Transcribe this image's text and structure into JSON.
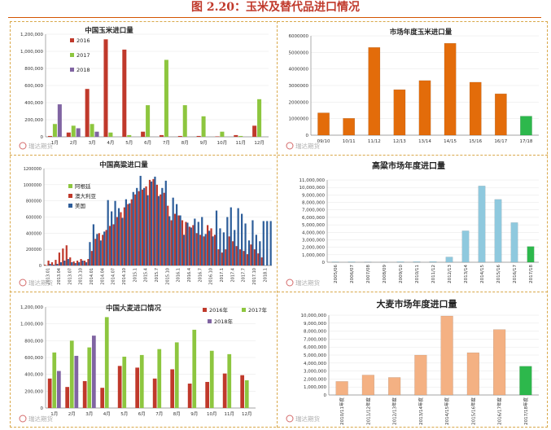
{
  "page": {
    "title": "图 2.20：玉米及替代品进口情况",
    "watermark": "瑞达期货"
  },
  "colors": {
    "title": "#C0392B",
    "rule": "#D35400",
    "red": "#C0392B",
    "green": "#8DC63F",
    "purple": "#8064A2",
    "blue": "#2E5E9A",
    "orange": "#E36C0A",
    "lightgreen": "#2DB84C",
    "lightblue": "#8FC9DE",
    "peach": "#F4B183"
  },
  "chart_data": [
    {
      "type": "bar",
      "title": "中国玉米进口量",
      "categories": [
        "1月",
        "2月",
        "3月",
        "4月",
        "5月",
        "6月",
        "7月",
        "8月",
        "9月",
        "10月",
        "11月",
        "12月"
      ],
      "ylim": [
        0,
        1200000
      ],
      "yticks": [
        "0",
        "200,000",
        "400,000",
        "600,000",
        "800,000",
        "1,000,000",
        "1,200,000"
      ],
      "legend": "top-left",
      "series": [
        {
          "name": "2016",
          "color": "red",
          "values": [
            10000,
            50000,
            560000,
            1140000,
            1020000,
            60000,
            20000,
            10000,
            10000,
            5000,
            20000,
            130000
          ]
        },
        {
          "name": "2017",
          "color": "green",
          "values": [
            150000,
            130000,
            150000,
            50000,
            20000,
            370000,
            900000,
            370000,
            240000,
            60000,
            10000,
            440000
          ]
        },
        {
          "name": "2018",
          "color": "purple",
          "values": [
            380000,
            100000,
            60000,
            0,
            0,
            0,
            0,
            0,
            0,
            0,
            0,
            0
          ]
        }
      ]
    },
    {
      "type": "bar",
      "title": "市场年度玉米进口量",
      "categories": [
        "09/10",
        "10/11",
        "11/12",
        "12/13",
        "13/14",
        "14/15",
        "15/16",
        "16/17",
        "17/18"
      ],
      "ylim": [
        0,
        6000000
      ],
      "yticks": [
        "0",
        "1000000",
        "2000000",
        "3000000",
        "4000000",
        "5000000",
        "6000000"
      ],
      "values": [
        1350000,
        1020000,
        5300000,
        2750000,
        3300000,
        5550000,
        3200000,
        2500000,
        1150000
      ],
      "colors": [
        "orange",
        "orange",
        "orange",
        "orange",
        "orange",
        "orange",
        "orange",
        "orange",
        "lightgreen"
      ]
    },
    {
      "type": "bar",
      "title": "中国高粱进口量",
      "ylim": [
        0,
        1200000
      ],
      "yticks": [
        "0",
        "200000",
        "400000",
        "600000",
        "800000",
        "1000000",
        "1200000"
      ],
      "xtick_labels": [
        "2013.01",
        "2013.04",
        "2013.07",
        "2013.10",
        "2014.01",
        "2014.04",
        "2014.07",
        "2014.10",
        "2015.1",
        "2015.4",
        "2015.7",
        "2015.10",
        "2016.1",
        "2016.4",
        "2016.7",
        "2016.10",
        "2017.1",
        "2017.4",
        "2017.7",
        "2017.10",
        "2018.1"
      ],
      "legend": "top-left",
      "series": [
        {
          "name": "阿根廷",
          "color": "green",
          "values": [
            0,
            0,
            0,
            0,
            0,
            0,
            0,
            0,
            0,
            0,
            0,
            0,
            0,
            0,
            0,
            0,
            0,
            0,
            0,
            0,
            0,
            0,
            0,
            0,
            0,
            0,
            0,
            0,
            0,
            0,
            0,
            0,
            0,
            0,
            0,
            0,
            0,
            0,
            0,
            0,
            0,
            0,
            0,
            0,
            0,
            0,
            0,
            0,
            0,
            0,
            0,
            0,
            0,
            0,
            0,
            0,
            0,
            0,
            0,
            0,
            0,
            0,
            0
          ]
        },
        {
          "name": "澳大利亚",
          "color": "red",
          "values": [
            10000,
            60000,
            40000,
            70000,
            160000,
            210000,
            250000,
            100000,
            50000,
            60000,
            80000,
            60000,
            80000,
            180000,
            330000,
            400000,
            380000,
            440000,
            490000,
            510000,
            600000,
            660000,
            720000,
            760000,
            820000,
            880000,
            920000,
            940000,
            980000,
            1060000,
            1070000,
            1000000,
            880000,
            900000,
            740000,
            560000,
            640000,
            620000,
            560000,
            540000,
            480000,
            500000,
            400000,
            380000,
            360000,
            500000,
            460000,
            380000,
            200000,
            160000,
            200000,
            360000,
            300000,
            240000,
            200000,
            180000,
            140000,
            260000,
            200000,
            150000,
            100000,
            0,
            0
          ]
        },
        {
          "name": "美国",
          "color": "blue",
          "values": [
            0,
            20000,
            10000,
            20000,
            40000,
            60000,
            80000,
            40000,
            30000,
            40000,
            60000,
            40000,
            290000,
            510000,
            390000,
            310000,
            420000,
            810000,
            670000,
            800000,
            710000,
            590000,
            820000,
            770000,
            910000,
            960000,
            1110000,
            960000,
            870000,
            1040000,
            1100000,
            860000,
            960000,
            1050000,
            610000,
            840000,
            760000,
            620000,
            380000,
            530000,
            470000,
            580000,
            540000,
            600000,
            390000,
            430000,
            360000,
            680000,
            460000,
            410000,
            600000,
            720000,
            440000,
            710000,
            640000,
            520000,
            310000,
            560000,
            380000,
            300000,
            550000,
            550000,
            550000
          ]
        }
      ]
    },
    {
      "type": "bar",
      "title": "高粱市场年度进口量",
      "categories": [
        "2005/06",
        "2006/07",
        "2007/08",
        "2008/09",
        "2009/10",
        "2010/11",
        "2011/12",
        "2012/13",
        "2013/14",
        "2014/15",
        "2015/16",
        "2016/17",
        "2017/18"
      ],
      "ylim": [
        0,
        11000000
      ],
      "yticks": [
        "0",
        "1,000,000",
        "2,000,000",
        "3,000,000",
        "4,000,000",
        "5,000,000",
        "6,000,000",
        "7,000,000",
        "8,000,000",
        "9,000,000",
        "10,000,000",
        "11,000,000"
      ],
      "values": [
        50000,
        60000,
        30000,
        20000,
        70000,
        80000,
        90000,
        700000,
        4200000,
        10200000,
        8400000,
        5300000,
        2100000
      ],
      "colors": [
        "lightblue",
        "lightblue",
        "lightblue",
        "lightblue",
        "lightblue",
        "lightblue",
        "lightblue",
        "lightblue",
        "lightblue",
        "lightblue",
        "lightblue",
        "lightblue",
        "lightgreen"
      ]
    },
    {
      "type": "bar",
      "title": "中国大麦进口情况",
      "categories": [
        "1月",
        "2月",
        "3月",
        "4月",
        "5月",
        "6月",
        "7月",
        "8月",
        "9月",
        "10月",
        "11月",
        "12月"
      ],
      "ylim": [
        0,
        1200000
      ],
      "yticks": [
        "0",
        "200,000",
        "400,000",
        "600,000",
        "800,000",
        "1,000,000",
        "1,200,000"
      ],
      "legend": "top-right",
      "series": [
        {
          "name": "2016年",
          "color": "red",
          "values": [
            350000,
            250000,
            320000,
            240000,
            500000,
            480000,
            350000,
            460000,
            290000,
            310000,
            410000,
            390000
          ]
        },
        {
          "name": "2017年",
          "color": "green",
          "values": [
            660000,
            800000,
            720000,
            1080000,
            610000,
            630000,
            700000,
            780000,
            930000,
            680000,
            640000,
            330000
          ]
        },
        {
          "name": "2018年",
          "color": "purple",
          "values": [
            440000,
            620000,
            860000,
            0,
            0,
            0,
            0,
            0,
            0,
            0,
            0,
            0
          ]
        }
      ]
    },
    {
      "type": "bar",
      "title": "大麦市场年度进口量",
      "categories": [
        "2010/11年度",
        "2011/12年度",
        "2012/13年度",
        "2013/14年度",
        "2014/15年度",
        "2015/16年度",
        "2016/17年度",
        "2017/18年度"
      ],
      "ylim": [
        0,
        10000000
      ],
      "yticks": [
        "0",
        "1,000,000",
        "2,000,000",
        "3,000,000",
        "4,000,000",
        "5,000,000",
        "6,000,000",
        "7,000,000",
        "8,000,000",
        "9,000,000",
        "10,000,000"
      ],
      "values": [
        1700000,
        2500000,
        2200000,
        5000000,
        9900000,
        5300000,
        8200000,
        3600000
      ],
      "colors": [
        "peach",
        "peach",
        "peach",
        "peach",
        "peach",
        "peach",
        "peach",
        "lightgreen"
      ]
    }
  ]
}
